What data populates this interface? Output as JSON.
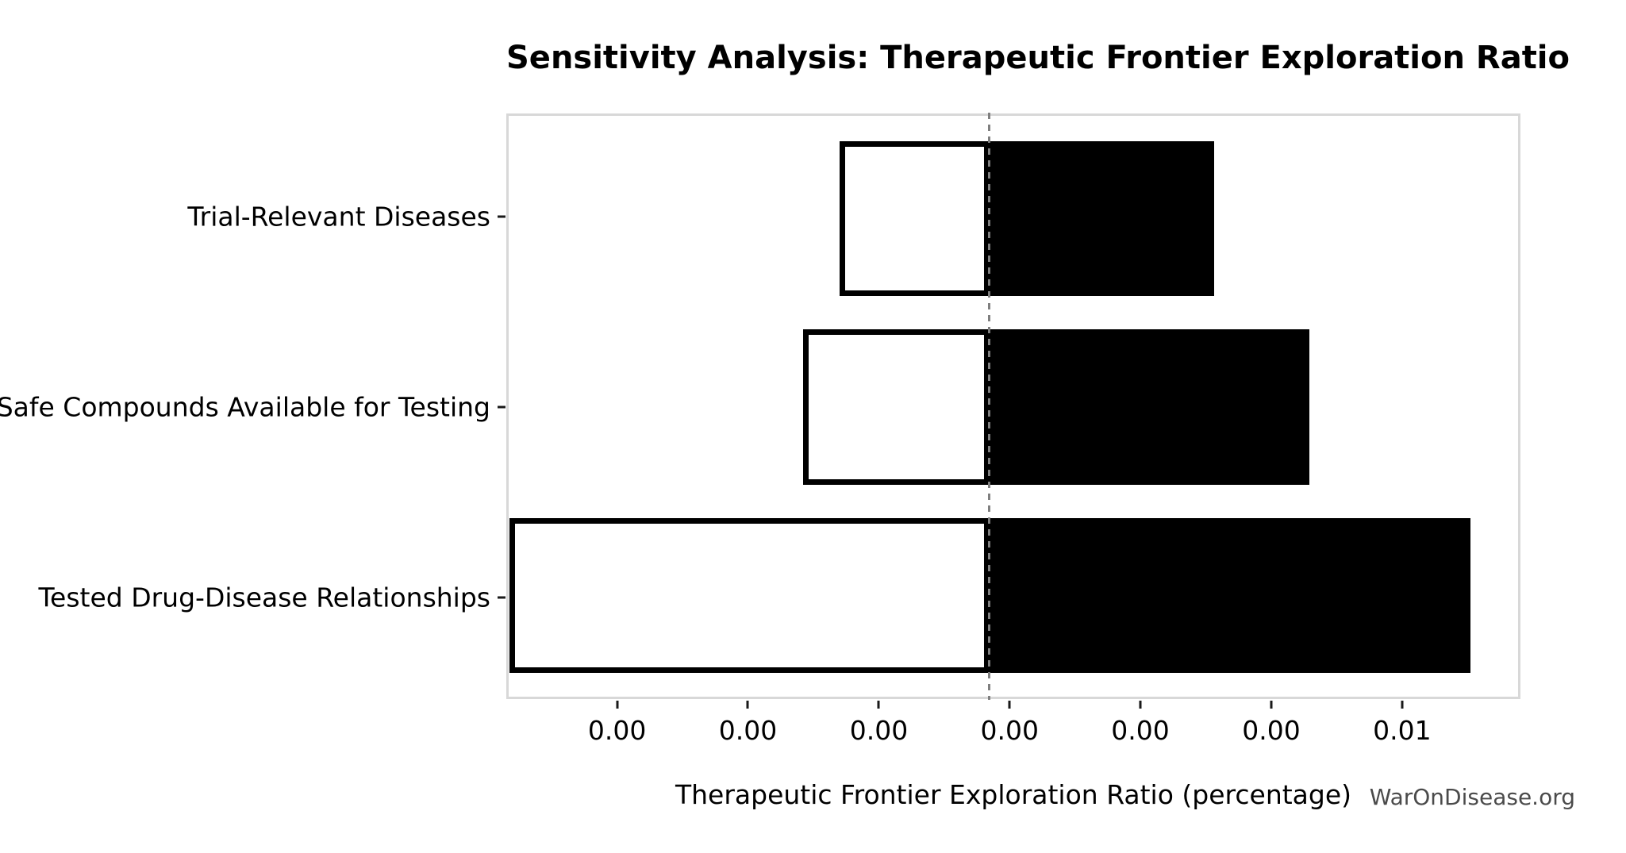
{
  "title": "Sensitivity Analysis: Therapeutic Frontier Exploration Ratio",
  "watermark": "WarOnDisease.org",
  "colors": {
    "bar_fill_low": "#ffffff",
    "bar_fill_high": "#000000",
    "bar_edge": "#000000",
    "baseline_line": "#7f7f7f",
    "spine": "#d8d8d8",
    "tick": "#1a1a1a",
    "watermark_text": "#4b4b4b",
    "background": "#ffffff"
  },
  "chart_data": {
    "type": "bar",
    "orientation": "horizontal",
    "title": "Sensitivity Analysis: Therapeutic Frontier Exploration Ratio",
    "xlabel": "Therapeutic Frontier Exploration Ratio (percentage)",
    "ylabel": "",
    "categories": [
      "Trial-Relevant Diseases",
      "Safe Compounds Available for Testing",
      "Tested Drug-Disease Relationships"
    ],
    "series": [
      {
        "name": "low scenario (white segment, left of baseline)",
        "values": [
          0.00141,
          0.00118,
          -0.0007
        ]
      },
      {
        "name": "high scenario (black segment, right of baseline)",
        "values": [
          0.00381,
          0.00442,
          0.00545
        ]
      }
    ],
    "baseline": 0.00237,
    "baseline_style": "vertical dashed gray line",
    "xlim": [
      -0.000706,
      0.005754
    ],
    "xticks": {
      "values": [
        0.0,
        0.000833,
        0.001667,
        0.0025,
        0.003333,
        0.004167,
        0.005
      ],
      "labels": [
        "0.00",
        "0.00",
        "0.00",
        "0.00",
        "0.00",
        "0.00",
        "0.01"
      ]
    },
    "grid": false,
    "legend": "none"
  }
}
